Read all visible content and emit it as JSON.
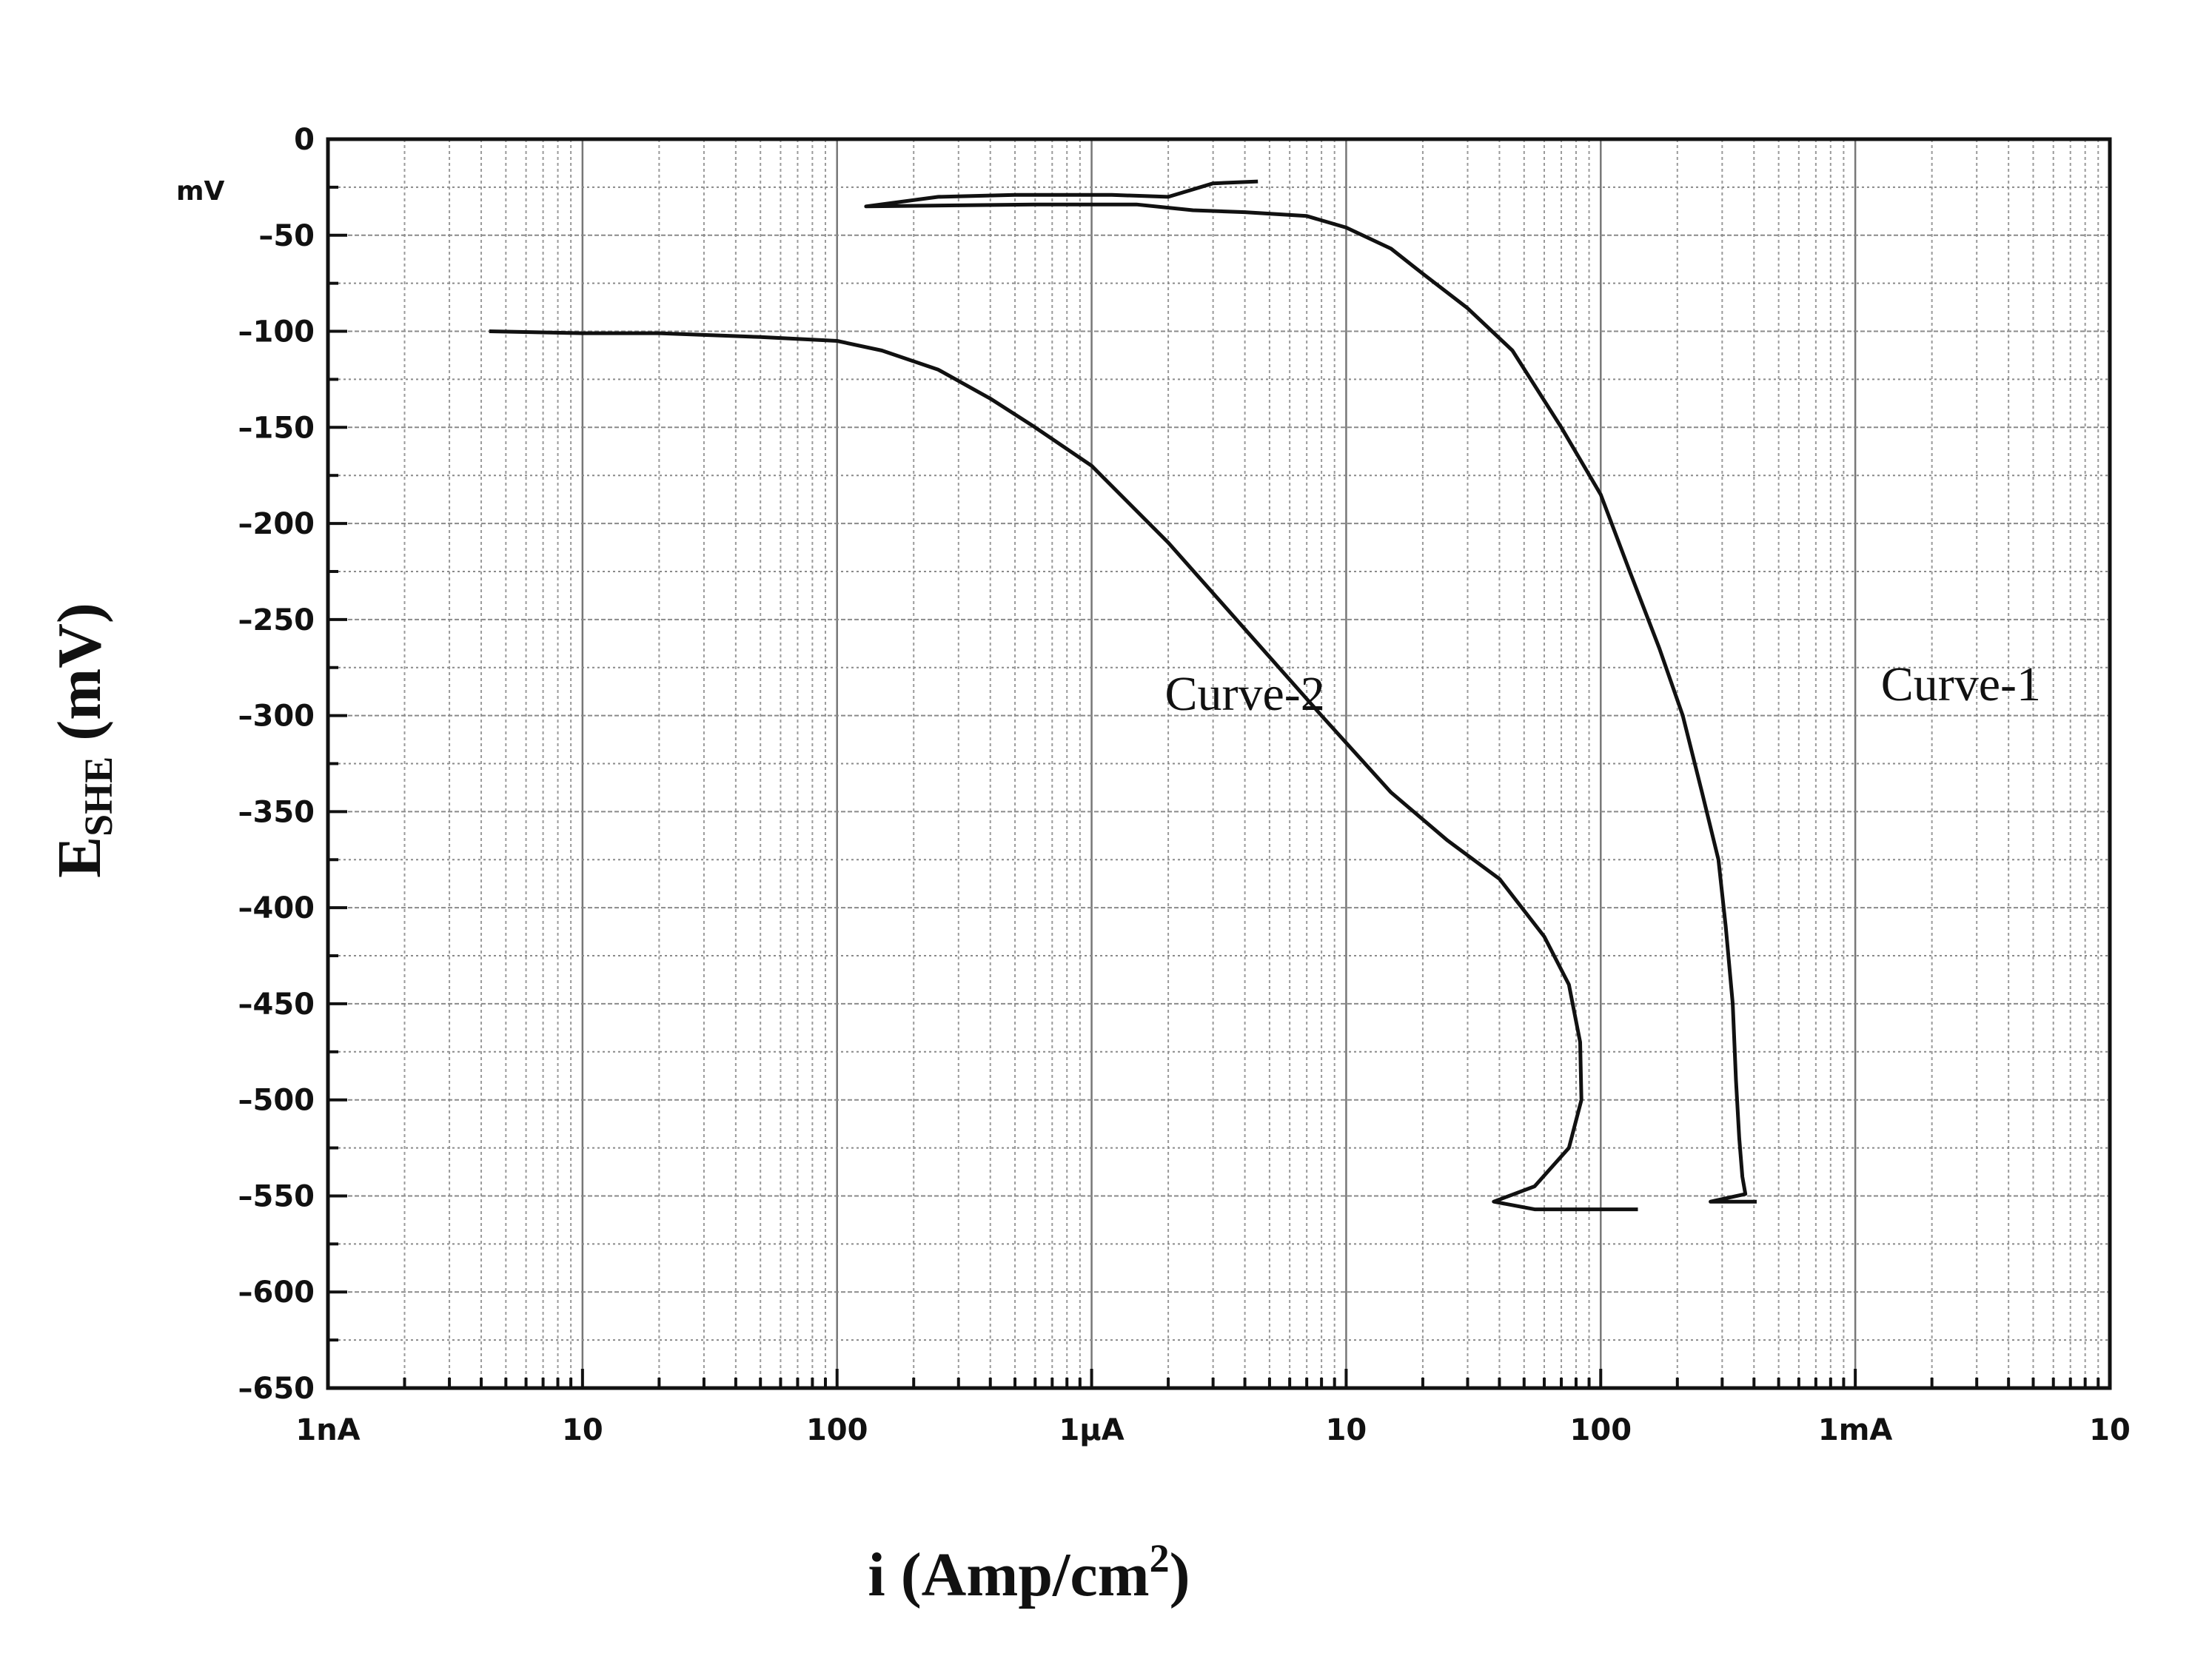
{
  "chart_data": {
    "type": "line",
    "title": "",
    "xlabel": "i (Amp/cm",
    "xlabel_sup": "2",
    "xlabel_close": ")",
    "ylabel": "E",
    "ylabel_sub": "SHE",
    "ylabel_unit": " (mV)",
    "y_unit_label": "mV",
    "x_scale": "log",
    "xlim": [
      1e-09,
      0.01
    ],
    "ylim": [
      -650,
      0
    ],
    "x_ticks": [
      {
        "value": 1e-09,
        "label": "1nA"
      },
      {
        "value": 1e-08,
        "label": "10"
      },
      {
        "value": 1e-07,
        "label": "100"
      },
      {
        "value": 1e-06,
        "label": "1µA"
      },
      {
        "value": 1e-05,
        "label": "10"
      },
      {
        "value": 0.0001,
        "label": "100"
      },
      {
        "value": 0.001,
        "label": "1mA"
      },
      {
        "value": 0.01,
        "label": "10"
      }
    ],
    "y_ticks": [
      0,
      -50,
      -100,
      -150,
      -200,
      -250,
      -300,
      -350,
      -400,
      -450,
      -500,
      -550,
      -600,
      -650
    ],
    "grid": true,
    "series": [
      {
        "name": "Curve-1",
        "points": [
          [
            4.5e-06,
            -22
          ],
          [
            3e-06,
            -23
          ],
          [
            2e-06,
            -30
          ],
          [
            1.2e-06,
            -29
          ],
          [
            5e-07,
            -29
          ],
          [
            2.5e-07,
            -30
          ],
          [
            1.3e-07,
            -35
          ],
          [
            6e-07,
            -34
          ],
          [
            1.5e-06,
            -34
          ],
          [
            2.5e-06,
            -37
          ],
          [
            4e-06,
            -38
          ],
          [
            7e-06,
            -40
          ],
          [
            1e-05,
            -46
          ],
          [
            1.5e-05,
            -57
          ],
          [
            2e-05,
            -70
          ],
          [
            3e-05,
            -88
          ],
          [
            4.5e-05,
            -110
          ],
          [
            7e-05,
            -150
          ],
          [
            0.0001,
            -185
          ],
          [
            0.00013,
            -225
          ],
          [
            0.00017,
            -265
          ],
          [
            0.00021,
            -300
          ],
          [
            0.00025,
            -340
          ],
          [
            0.00029,
            -375
          ],
          [
            0.00031,
            -410
          ],
          [
            0.00033,
            -450
          ],
          [
            0.00034,
            -490
          ],
          [
            0.00035,
            -520
          ],
          [
            0.00036,
            -540
          ],
          [
            0.00037,
            -549
          ],
          [
            0.00027,
            -553
          ],
          [
            0.00041,
            -553
          ]
        ]
      },
      {
        "name": "Curve-2",
        "points": [
          [
            4.3e-09,
            -100
          ],
          [
            1e-08,
            -101
          ],
          [
            2e-08,
            -101
          ],
          [
            5e-08,
            -103
          ],
          [
            1e-07,
            -105
          ],
          [
            1.5e-07,
            -110
          ],
          [
            2.5e-07,
            -120
          ],
          [
            4e-07,
            -135
          ],
          [
            6e-07,
            -150
          ],
          [
            1e-06,
            -170
          ],
          [
            2e-06,
            -210
          ],
          [
            4e-06,
            -255
          ],
          [
            8e-06,
            -300
          ],
          [
            1.5e-05,
            -340
          ],
          [
            2.5e-05,
            -365
          ],
          [
            4e-05,
            -385
          ],
          [
            6e-05,
            -415
          ],
          [
            7.5e-05,
            -440
          ],
          [
            8.3e-05,
            -470
          ],
          [
            8.4e-05,
            -500
          ],
          [
            7.5e-05,
            -525
          ],
          [
            5.5e-05,
            -545
          ],
          [
            3.8e-05,
            -553
          ],
          [
            5.5e-05,
            -557
          ],
          [
            0.00014,
            -557
          ]
        ]
      }
    ],
    "annotations": [
      {
        "text": "Curve-2",
        "x": 4e-06,
        "y": -297
      },
      {
        "text": "Curve-1",
        "x": 0.0026,
        "y": -292
      }
    ]
  }
}
